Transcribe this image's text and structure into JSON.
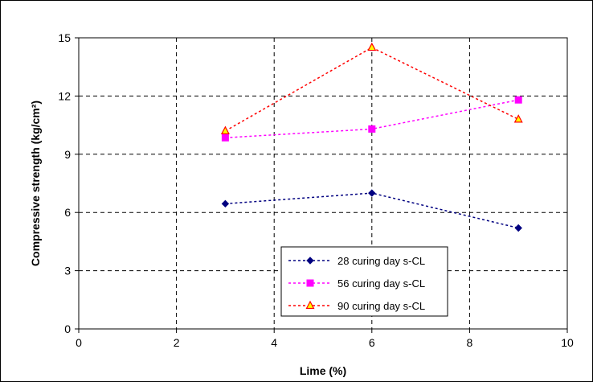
{
  "chart_data": {
    "type": "line",
    "xlabel": "Lime (%)",
    "ylabel": "Compressive strength    (kg/cm²)",
    "xlim": [
      0,
      10
    ],
    "ylim": [
      0,
      15
    ],
    "xticks": [
      0,
      2,
      4,
      6,
      8,
      10
    ],
    "yticks": [
      0,
      3,
      6,
      9,
      12,
      15
    ],
    "grid": true,
    "legend_position": "lower-center",
    "series": [
      {
        "name": "28 curing day s-CL",
        "x": [
          3,
          6,
          9
        ],
        "y": [
          6.45,
          7.0,
          5.2
        ],
        "color": "#000080",
        "marker": "diamond"
      },
      {
        "name": "56 curing day s-CL",
        "x": [
          3,
          6,
          9
        ],
        "y": [
          9.85,
          10.3,
          11.8
        ],
        "color": "#FF00FF",
        "marker": "square"
      },
      {
        "name": "90 curing day s-CL",
        "x": [
          3,
          6,
          9
        ],
        "y": [
          10.2,
          14.5,
          10.8
        ],
        "color": "#FF0000",
        "marker": "triangle"
      }
    ]
  }
}
